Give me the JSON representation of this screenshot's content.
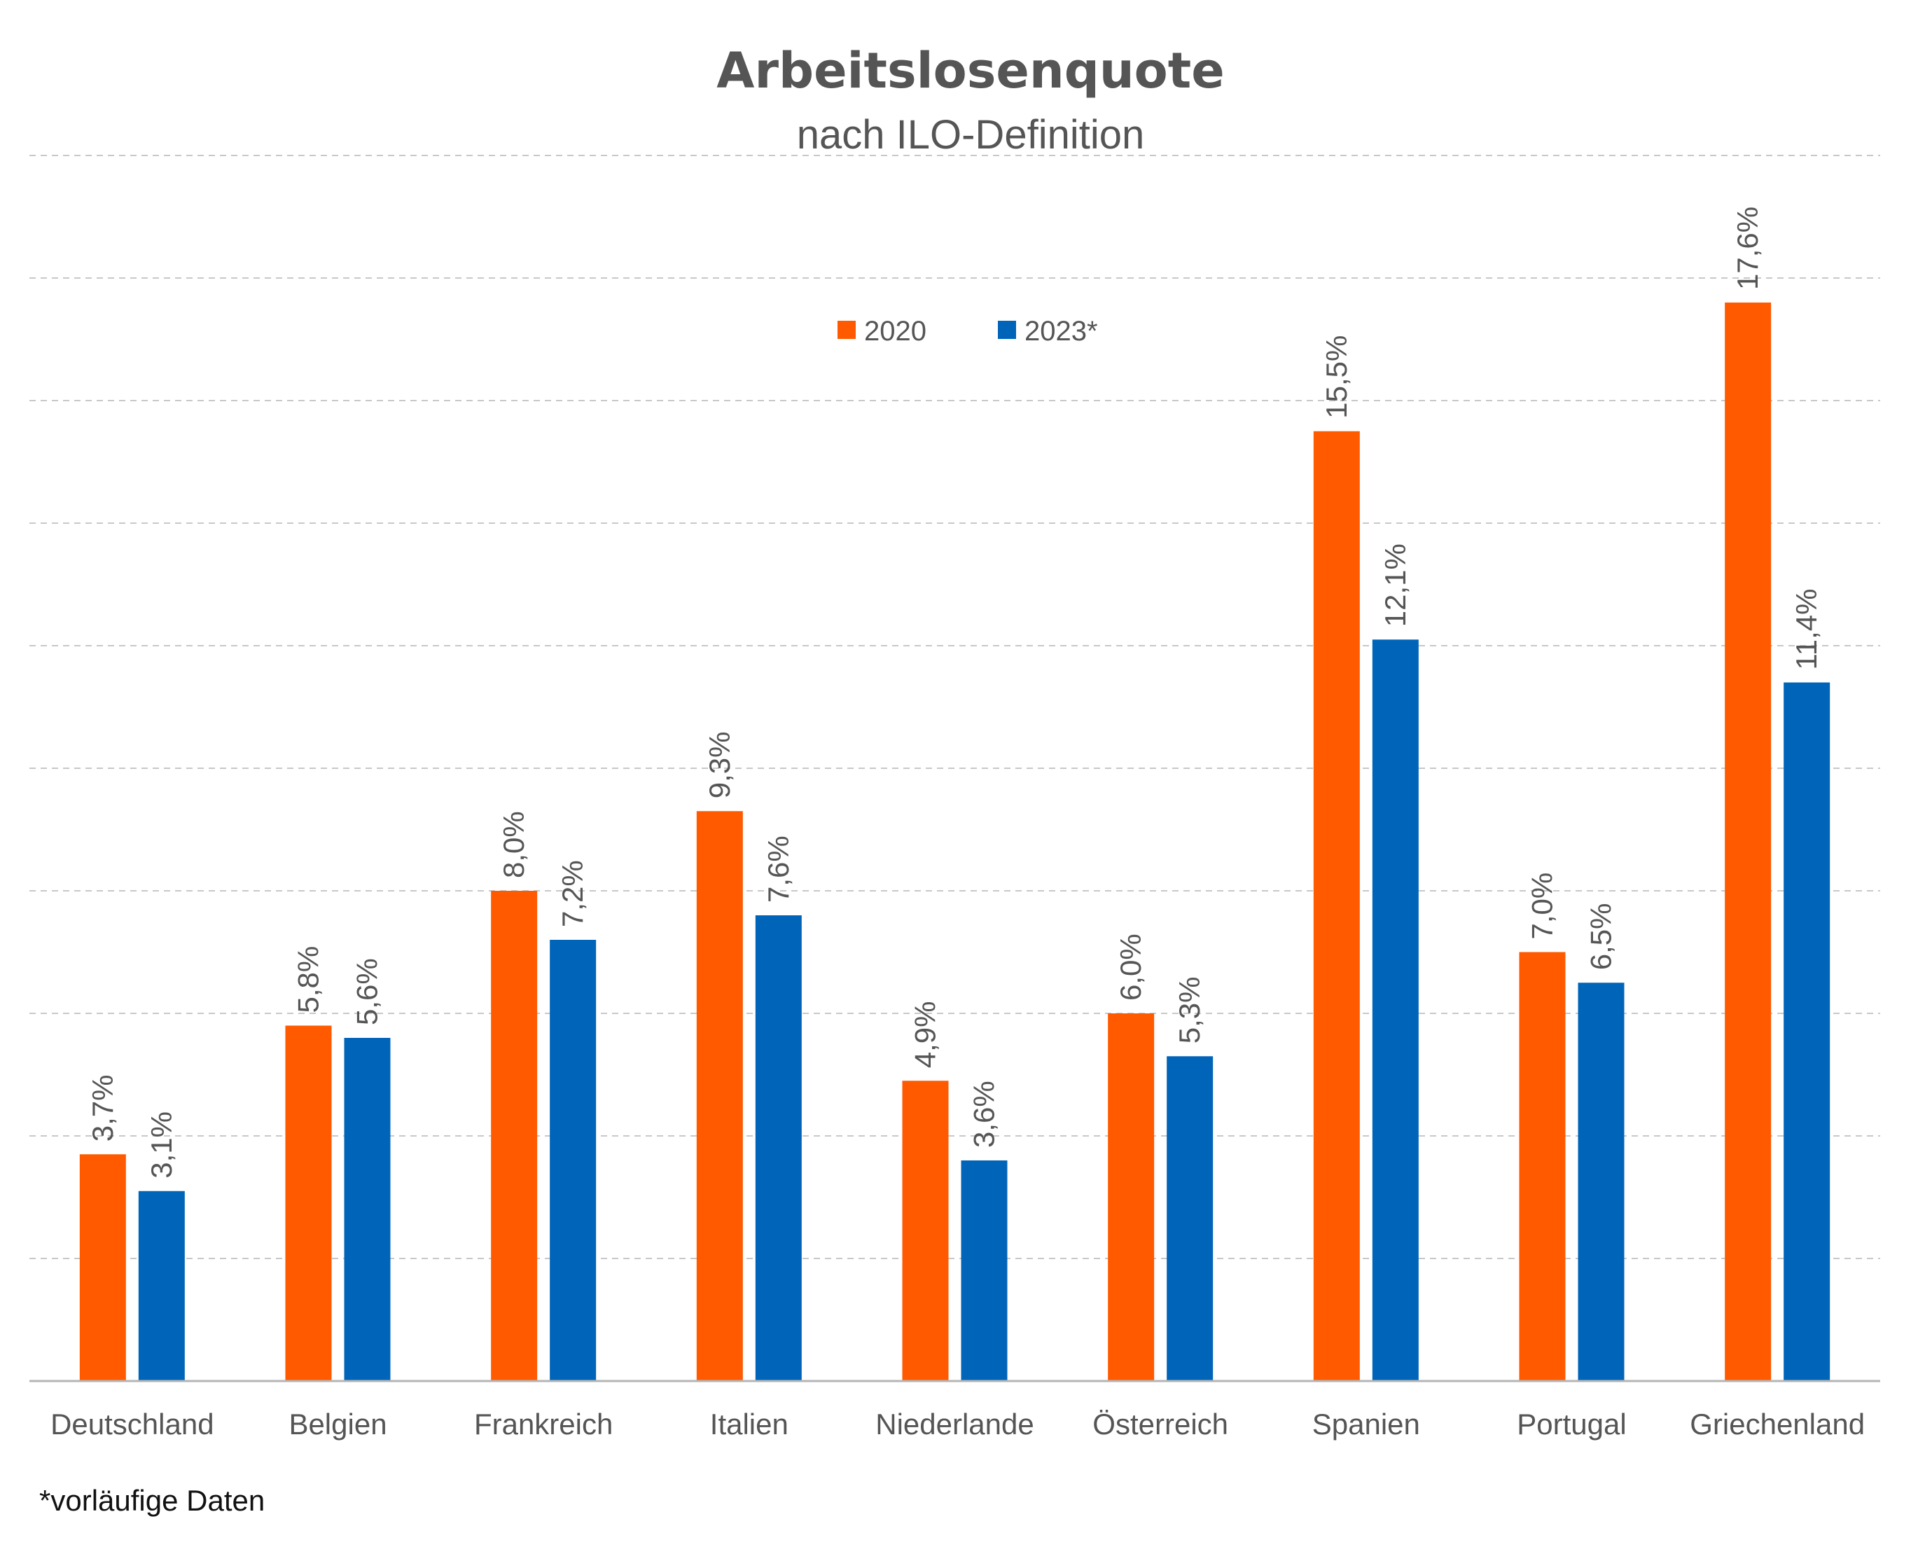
{
  "chart_data": {
    "type": "bar",
    "title": "Arbeitslosenquote",
    "subtitle": "nach ILO-Definition",
    "categories": [
      "Deutschland",
      "Belgien",
      "Frankreich",
      "Italien",
      "Niederlande",
      "Österreich",
      "Spanien",
      "Portugal",
      "Griechenland"
    ],
    "series": [
      {
        "name": "2020",
        "color": "#ff5a00",
        "values": [
          3.7,
          5.8,
          8.0,
          9.3,
          4.9,
          6.0,
          15.5,
          7.0,
          17.6
        ],
        "labels": [
          "3,7%",
          "5,8%",
          "8,0%",
          "9,3%",
          "4,9%",
          "6,0%",
          "15,5%",
          "7,0%",
          "17,6%"
        ]
      },
      {
        "name": "2023*",
        "color": "#0064b9",
        "values": [
          3.1,
          5.6,
          7.2,
          7.6,
          3.6,
          5.3,
          12.1,
          6.5,
          11.4
        ],
        "labels": [
          "3,1%",
          "5,6%",
          "7,2%",
          "7,6%",
          "3,6%",
          "5,3%",
          "12,1%",
          "6,5%",
          "11,4%"
        ]
      }
    ],
    "ylim": [
      0,
      20
    ],
    "grid": true,
    "legend_position": "top-center",
    "footnote": "*vorläufige Daten"
  }
}
